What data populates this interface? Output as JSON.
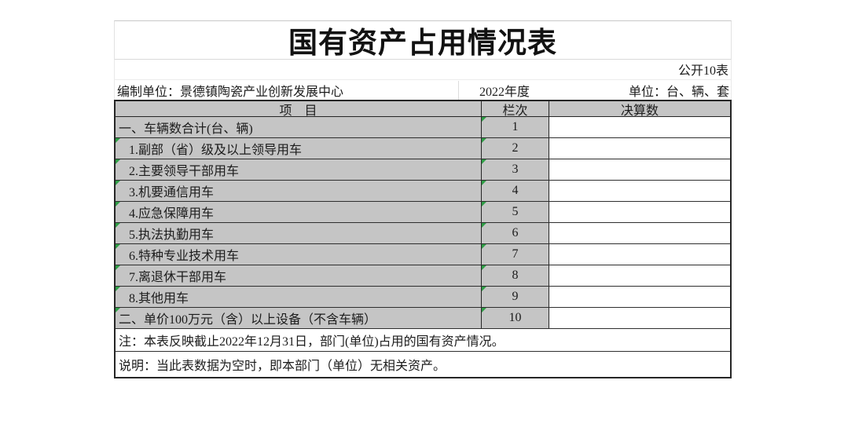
{
  "title": "国有资产占用情况表",
  "meta": {
    "public_label": "公开10表",
    "prepare_unit": "编制单位：景德镇陶瓷产业创新发展中心",
    "year": "2022年度",
    "unit": "单位：台、辆、套"
  },
  "table": {
    "col_item": "项　目",
    "col_index": "栏次",
    "col_value": "决算数",
    "rows": [
      {
        "item": "一、车辆数合计(台、辆)",
        "index": "1",
        "value": "",
        "indent": false,
        "flag_item": false,
        "flag_index": true
      },
      {
        "item": "1.副部（省）级及以上领导用车",
        "index": "2",
        "value": "",
        "indent": true,
        "flag_item": true,
        "flag_index": true
      },
      {
        "item": "2.主要领导干部用车",
        "index": "3",
        "value": "",
        "indent": true,
        "flag_item": true,
        "flag_index": true
      },
      {
        "item": "3.机要通信用车",
        "index": "4",
        "value": "",
        "indent": true,
        "flag_item": true,
        "flag_index": true
      },
      {
        "item": "4.应急保障用车",
        "index": "5",
        "value": "",
        "indent": true,
        "flag_item": true,
        "flag_index": true
      },
      {
        "item": "5.执法执勤用车",
        "index": "6",
        "value": "",
        "indent": true,
        "flag_item": true,
        "flag_index": true
      },
      {
        "item": "6.特种专业技术用车",
        "index": "7",
        "value": "",
        "indent": true,
        "flag_item": true,
        "flag_index": true
      },
      {
        "item": "7.离退休干部用车",
        "index": "8",
        "value": "",
        "indent": true,
        "flag_item": true,
        "flag_index": true
      },
      {
        "item": "8.其他用车",
        "index": "9",
        "value": "",
        "indent": true,
        "flag_item": true,
        "flag_index": true
      },
      {
        "item": "二、单价100万元（含）以上设备（不含车辆）",
        "index": "10",
        "value": "",
        "indent": false,
        "flag_item": true,
        "flag_index": true
      }
    ]
  },
  "notes": {
    "note1": "注：本表反映截止2022年12月31日，部门(单位)占用的国有资产情况。",
    "note2": "说明：当此表数据为空时，即本部门（单位）无相关资产。"
  },
  "colors": {
    "header_bg": "#c5c5c5",
    "table_border": "#262626",
    "flag_green": "#2f9e46"
  }
}
